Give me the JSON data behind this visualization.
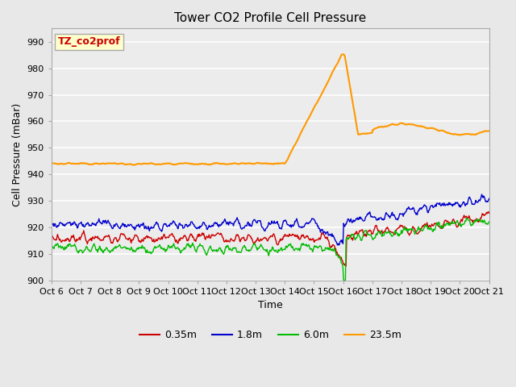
{
  "title": "Tower CO2 Profile Cell Pressure",
  "xlabel": "Time",
  "ylabel": "Cell Pressure (mBar)",
  "ylim": [
    900,
    995
  ],
  "yticks": [
    900,
    910,
    920,
    930,
    940,
    950,
    960,
    970,
    980,
    990
  ],
  "plot_bg_color": "#e8e8e8",
  "fig_bg_color": "#e8e8e8",
  "label_box_text": "TZ_co2prof",
  "label_box_color": "#ffffcc",
  "label_box_edge_color": "#aaaaaa",
  "label_text_color": "#cc0000",
  "series": {
    "0.35m": {
      "color": "#cc0000",
      "linewidth": 1.0
    },
    "1.8m": {
      "color": "#0000cc",
      "linewidth": 1.0
    },
    "6.0m": {
      "color": "#00bb00",
      "linewidth": 1.0
    },
    "23.5m": {
      "color": "#ff9900",
      "linewidth": 1.5
    }
  },
  "xtick_labels": [
    "Oct 6",
    "Oct 7",
    "Oct 8",
    "Oct 9",
    "Oct 10",
    "Oct 11",
    "Oct 12",
    "Oct 13",
    "Oct 14",
    "Oct 15",
    "Oct 16",
    "Oct 17",
    "Oct 18",
    "Oct 19",
    "Oct 20",
    "Oct 21"
  ],
  "n_days": 15,
  "spike_day": 10,
  "pts_per_day": 48,
  "seed": 42
}
